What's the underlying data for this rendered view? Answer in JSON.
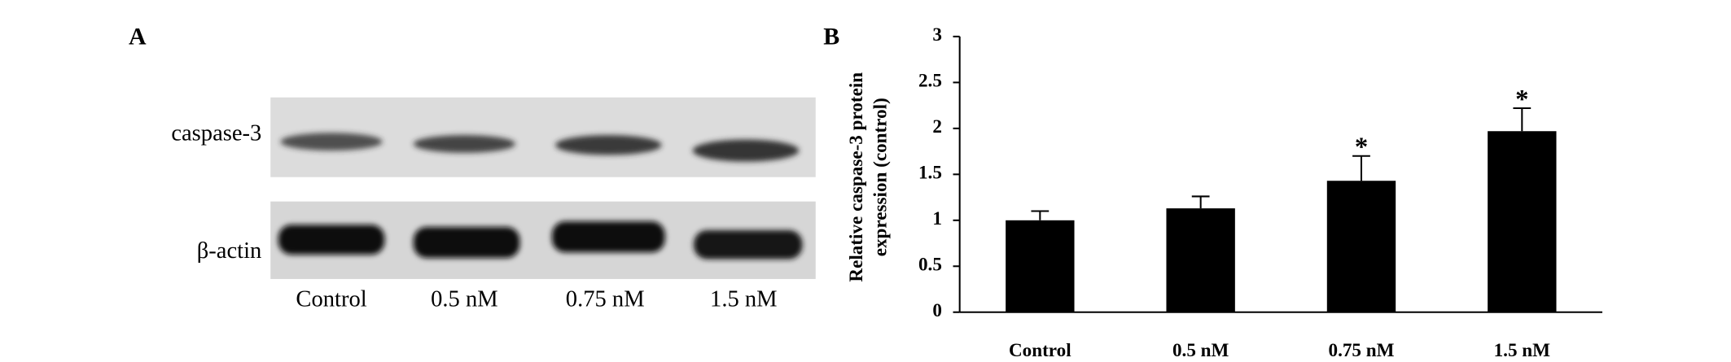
{
  "panel_a": {
    "label": "A",
    "rows": [
      "caspase-3",
      "β-actin"
    ],
    "lanes": [
      "Control",
      "0.5 nM",
      "0.75 nM",
      "1.5 nM"
    ]
  },
  "chart_data": {
    "type": "bar",
    "label": "B",
    "ylabel": [
      "Relative caspase-3 protein",
      "expression (control)"
    ],
    "categories": [
      "Control",
      "0.5 nM",
      "0.75 nM",
      "1.5 nM"
    ],
    "values": [
      1.0,
      1.13,
      1.43,
      1.97
    ],
    "errors": [
      0.1,
      0.13,
      0.27,
      0.25
    ],
    "significance": [
      null,
      null,
      "*",
      "*"
    ],
    "color": "#000000",
    "ylim": [
      0,
      3
    ],
    "yticks": [
      0,
      0.5,
      1,
      1.5,
      2,
      2.5,
      3
    ]
  }
}
